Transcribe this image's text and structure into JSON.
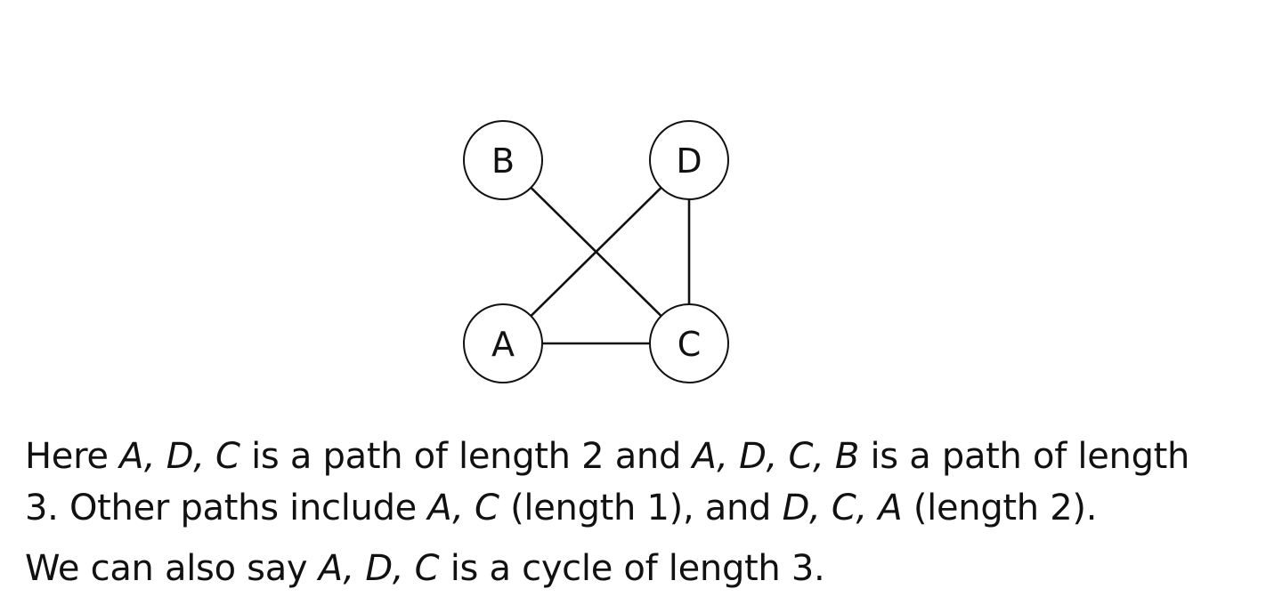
{
  "graph": {
    "nodes": [
      {
        "id": "B",
        "label": "B"
      },
      {
        "id": "D",
        "label": "D"
      },
      {
        "id": "A",
        "label": "A"
      },
      {
        "id": "C",
        "label": "C"
      }
    ],
    "edges": [
      {
        "from": "B",
        "to": "C"
      },
      {
        "from": "D",
        "to": "A"
      },
      {
        "from": "D",
        "to": "C"
      },
      {
        "from": "A",
        "to": "C"
      }
    ],
    "stroke_color": "#111111"
  },
  "paragraph1": {
    "lines": [
      [
        {
          "t": "Here ",
          "m": false
        },
        {
          "t": "A, D, C",
          "m": true
        },
        {
          "t": " is a path of length 2 and ",
          "m": false
        },
        {
          "t": "A, D, C, B",
          "m": true
        },
        {
          "t": " is a path of length",
          "m": false
        }
      ],
      [
        {
          "t": "3.  Other paths include ",
          "m": false
        },
        {
          "t": "A, C",
          "m": true
        },
        {
          "t": " (length 1), and ",
          "m": false
        },
        {
          "t": "D, C, A",
          "m": true
        },
        {
          "t": " (length 2).",
          "m": false
        }
      ]
    ]
  },
  "paragraph2": {
    "lines": [
      [
        {
          "t": "We can also say ",
          "m": false
        },
        {
          "t": "A, D, C",
          "m": true
        },
        {
          "t": " is a cycle of length 3.",
          "m": false
        }
      ]
    ]
  }
}
